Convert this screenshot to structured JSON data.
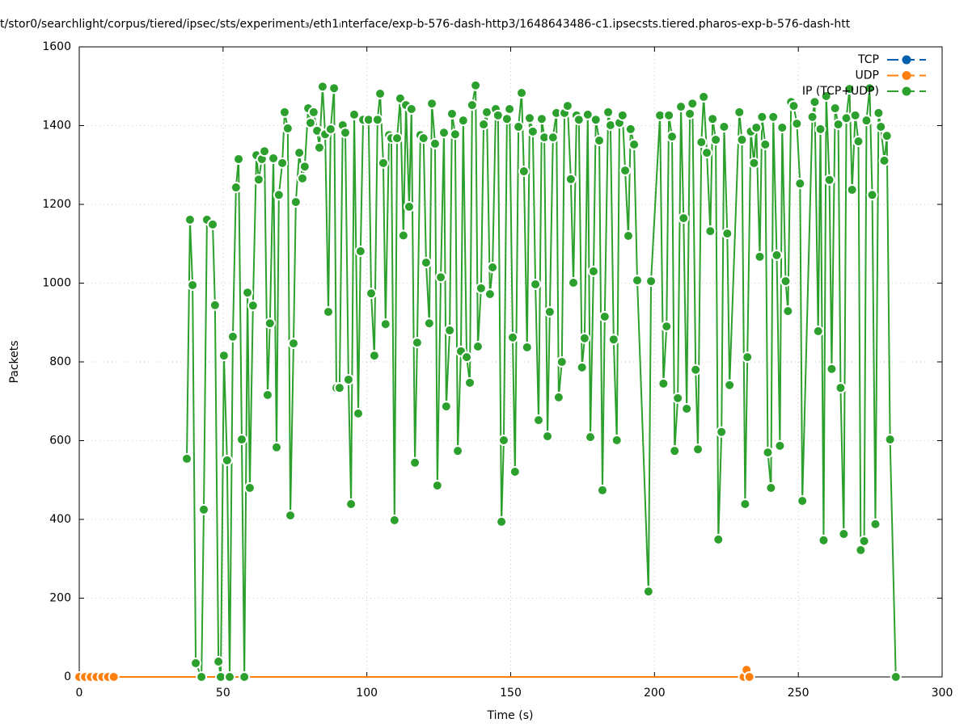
{
  "chart_data": {
    "type": "line",
    "title": "t/stor0/searchlight/corpus/tiered/ipsec/sts/experiment₃/eth1ᵢnterface/exp-b-576-dash-http3/1648643486-c1.ipsecsts.tiered.pharos-exp-b-576-dash-htt",
    "x_label": "Time (s)",
    "y_label": "Packets",
    "xlim": [
      0,
      300
    ],
    "xticks": [
      0,
      50,
      100,
      150,
      200,
      250,
      300
    ],
    "ylim": [
      0,
      1600
    ],
    "yticks": [
      0,
      200,
      400,
      600,
      800,
      1000,
      1200,
      1400,
      1600
    ],
    "grid": true,
    "legend": "upper right",
    "series": [
      {
        "name": "TCP",
        "color": "#0060ad",
        "x": [
          0,
          2,
          4,
          6,
          8,
          10,
          12
        ],
        "values": [
          0,
          0,
          0,
          0,
          0,
          0,
          0
        ]
      },
      {
        "name": "UDP",
        "color": "#ff7f0e",
        "x": [
          0,
          2,
          4,
          6,
          8,
          10,
          12,
          231,
          232,
          233
        ],
        "values": [
          0,
          0,
          0,
          0,
          0,
          0,
          0,
          0,
          18,
          0
        ]
      },
      {
        "name": "IP (TCP+UDP)",
        "color": "#2ca02c",
        "x": [
          37.4,
          38.5,
          39.4,
          40.5,
          42.5,
          43.3,
          44.4,
          46.4,
          47.2,
          48.4,
          49.2,
          50.3,
          51.4,
          52.3,
          53.4,
          54.5,
          55.4,
          56.5,
          57.4,
          58.5,
          59.3,
          60.4,
          61.6,
          62.4,
          63.5,
          64.4,
          65.5,
          66.3,
          67.5,
          68.6,
          69.4,
          70.6,
          71.4,
          72.5,
          73.4,
          74.5,
          75.3,
          76.5,
          77.6,
          78.4,
          79.6,
          80.4,
          81.5,
          82.7,
          83.5,
          84.6,
          85.5,
          86.6,
          87.4,
          88.6,
          89.4,
          90.5,
          91.6,
          92.5,
          93.6,
          94.5,
          95.6,
          97,
          97.8,
          98.7,
          100.6,
          101.5,
          102.6,
          103.7,
          104.6,
          105.7,
          106.5,
          107.7,
          108.5,
          109.6,
          110.5,
          111.6,
          112.7,
          113.6,
          114.7,
          115.5,
          116.7,
          117.5,
          118.6,
          119.7,
          120.6,
          121.7,
          122.6,
          123.7,
          124.5,
          125.7,
          126.8,
          127.6,
          128.8,
          129.6,
          130.7,
          131.6,
          132.7,
          133.5,
          134.7,
          135.8,
          136.6,
          137.8,
          138.6,
          139.7,
          140.6,
          141.7,
          142.8,
          143.7,
          144.8,
          145.6,
          146.8,
          147.6,
          148.7,
          149.6,
          150.7,
          151.5,
          152.7,
          153.8,
          154.6,
          155.7,
          156.6,
          157.7,
          158.6,
          159.7,
          160.8,
          161.7,
          162.8,
          163.6,
          164.7,
          165.9,
          166.7,
          167.8,
          168.7,
          169.8,
          170.9,
          171.8,
          172.9,
          173.7,
          174.8,
          175.7,
          176.8,
          177.7,
          178.8,
          179.6,
          180.8,
          181.9,
          182.7,
          183.9,
          184.7,
          185.8,
          186.9,
          187.8,
          188.9,
          189.8,
          190.9,
          191.7,
          192.9,
          194,
          197.9,
          198.8,
          201.9,
          203.1,
          204.2,
          205,
          206.1,
          207,
          208.1,
          209.2,
          210.1,
          211.2,
          212.3,
          213.2,
          214.3,
          215.1,
          216.3,
          217.1,
          218.2,
          219.4,
          220.2,
          221.3,
          222.2,
          223.3,
          224.2,
          225.3,
          226.1,
          229.5,
          230.4,
          231.5,
          232.3,
          233.5,
          234.6,
          235.4,
          236.6,
          237.4,
          238.5,
          239.4,
          240.5,
          241.3,
          242.5,
          243.6,
          244.4,
          245.6,
          246.4,
          247.5,
          248.4,
          249.5,
          250.6,
          251.4,
          254.9,
          255.7,
          256.9,
          257.7,
          258.8,
          259.7,
          260.8,
          261.6,
          262.8,
          263.9,
          264.7,
          265.8,
          266.7,
          267.8,
          268.7,
          269.8,
          270.9,
          271.7,
          272.9,
          273.7,
          274.8,
          275.7,
          276.8,
          277.9,
          278.7,
          279.9,
          280.8,
          281.9,
          283.9
        ],
        "values": [
          554,
          1161,
          995,
          35,
          0,
          425,
          1161,
          1149,
          944,
          39,
          0,
          816,
          550,
          0,
          864,
          1243,
          1315,
          603,
          0,
          976,
          480,
          943,
          1325,
          1263,
          1315,
          1335,
          716,
          898,
          1317,
          583,
          1224,
          1305,
          1434,
          1393,
          410,
          847,
          1206,
          1331,
          1266,
          1296,
          1444,
          1407,
          1434,
          1387,
          1344,
          1499,
          1378,
          927,
          1391,
          1495,
          734,
          734,
          1401,
          1382,
          755,
          439,
          1428,
          669,
          1081,
          1415,
          1415,
          974,
          816,
          1415,
          1481,
          1305,
          896,
          1376,
          1368,
          398,
          1368,
          1469,
          1121,
          1452,
          1194,
          1442,
          544,
          849,
          1376,
          1368,
          1052,
          898,
          1456,
          1354,
          486,
          1015,
          1382,
          687,
          880,
          1430,
          1378,
          574,
          827,
          1413,
          812,
          747,
          1452,
          1502,
          839,
          987,
          1403,
          1434,
          972,
          1040,
          1442,
          1426,
          394,
          601,
          1417,
          1442,
          862,
          521,
          1397,
          1483,
          1284,
          837,
          1419,
          1385,
          997,
          652,
          1417,
          1370,
          611,
          927,
          1370,
          1432,
          710,
          800,
          1432,
          1450,
          1264,
          1001,
          1426,
          1415,
          786,
          860,
          1428,
          609,
          1030,
          1415,
          1362,
          474,
          915,
          1434,
          1401,
          857,
          601,
          1407,
          1426,
          1286,
          1120,
          1391,
          1352,
          1007,
          217,
          1005,
          1426,
          745,
          890,
          1426,
          1372,
          574,
          708,
          1448,
          1165,
          681,
          1430,
          1456,
          780,
          578,
          1358,
          1473,
          1331,
          1132,
          1417,
          1364,
          349,
          622,
          1397,
          1126,
          741,
          1434,
          1364,
          439,
          812,
          1385,
          1305,
          1395,
          1067,
          1422,
          1352,
          570,
          480,
          1422,
          1071,
          587,
          1395,
          1005,
          929,
          1460,
          1450,
          1405,
          1253,
          447,
          1422,
          1460,
          878,
          1391,
          347,
          1475,
          1262,
          782,
          1444,
          1403,
          734,
          363,
          1419,
          1493,
          1237,
          1426,
          1360,
          322,
          345,
          1413,
          1495,
          1224,
          388,
          1432,
          1397,
          1311,
          1374,
          603,
          0
        ]
      }
    ]
  }
}
